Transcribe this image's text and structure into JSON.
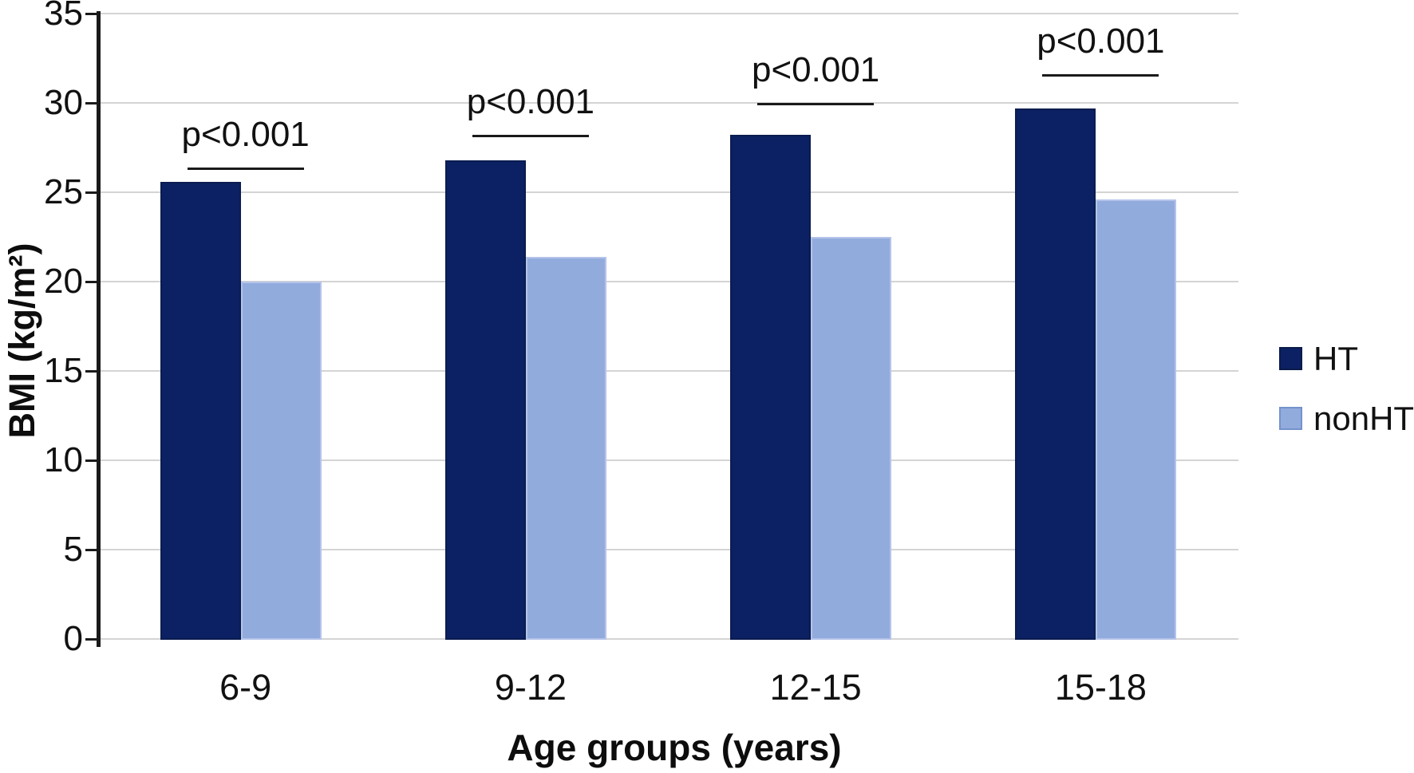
{
  "figure": {
    "background": "#ffffff"
  },
  "chart_data": {
    "type": "bar",
    "title": "",
    "categories": [
      "6-9",
      "9-12",
      "12-15",
      "15-18"
    ],
    "series": [
      {
        "name": "HT",
        "color": "#0b2163",
        "values": [
          25.6,
          26.8,
          28.2,
          29.7
        ]
      },
      {
        "name": "nonHT",
        "color": "#92abdd",
        "values": [
          20.0,
          21.4,
          22.5,
          24.6
        ]
      }
    ],
    "significance": [
      {
        "group": "6-9",
        "label": "p<0.001",
        "line_y": 26.4
      },
      {
        "group": "9-12",
        "label": "p<0.001",
        "line_y": 28.2
      },
      {
        "group": "12-15",
        "label": "p<0.001",
        "line_y": 30.0
      },
      {
        "group": "15-18",
        "label": "p<0.001",
        "line_y": 31.6
      }
    ],
    "xlabel": "Age groups (years)",
    "ylabel": "BMI (kg/m²)",
    "ylim": [
      0,
      35
    ],
    "yticks": [
      0,
      5,
      10,
      15,
      20,
      25,
      30,
      35
    ],
    "grid": "horizontal",
    "legend": {
      "position": "right",
      "entries": [
        "HT",
        "nonHT"
      ]
    }
  },
  "style_colors": {
    "grid": "#d4d4d4",
    "axis": "#1a1a1a",
    "text": "#111111"
  }
}
